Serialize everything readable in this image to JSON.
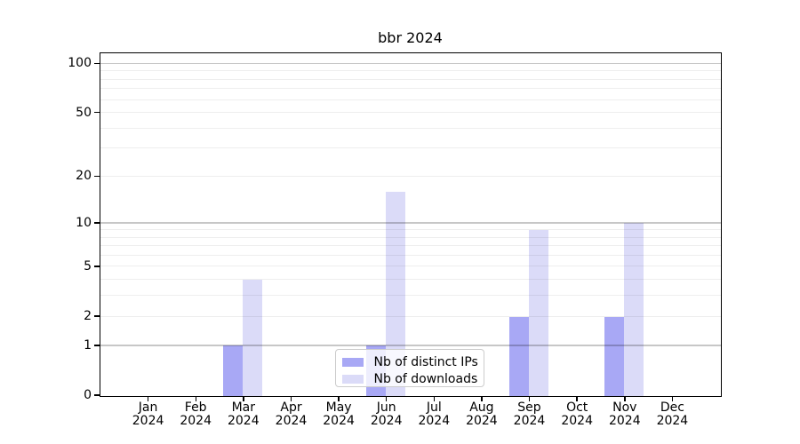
{
  "title": "bbr 2024",
  "chart_data": {
    "type": "bar",
    "title": "bbr 2024",
    "categories": [
      "Jan 2024",
      "Feb 2024",
      "Mar 2024",
      "Apr 2024",
      "May 2024",
      "Jun 2024",
      "Jul 2024",
      "Aug 2024",
      "Sep 2024",
      "Oct 2024",
      "Nov 2024",
      "Dec 2024"
    ],
    "series": [
      {
        "name": "Nb of distinct IPs",
        "color": "#a8a8f5",
        "values": [
          0,
          0,
          1,
          0,
          0,
          1,
          0,
          0,
          2,
          0,
          2,
          0
        ]
      },
      {
        "name": "Nb of downloads",
        "color": "#dbdbf8",
        "values": [
          0,
          0,
          4,
          0,
          0,
          16,
          0,
          0,
          9,
          0,
          10,
          0
        ]
      }
    ],
    "xlabel": "",
    "ylabel": "",
    "yscale": "log1p",
    "ylim": [
      0,
      115
    ],
    "yticks": [
      0,
      1,
      2,
      5,
      10,
      20,
      50,
      100
    ],
    "major_gridlines": [
      1,
      10,
      100
    ],
    "minor_gridlines": [
      2,
      3,
      4,
      5,
      6,
      7,
      8,
      9,
      20,
      30,
      40,
      50,
      60,
      70,
      80,
      90
    ],
    "grid": true,
    "legend_position": "lower center",
    "background": "#ffffff"
  }
}
